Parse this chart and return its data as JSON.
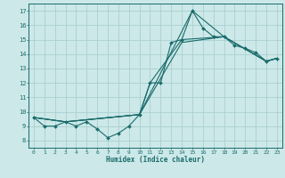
{
  "title": "",
  "xlabel": "Humidex (Indice chaleur)",
  "ylabel": "",
  "xlim": [
    -0.5,
    23.5
  ],
  "ylim": [
    7.5,
    17.5
  ],
  "xticks": [
    0,
    1,
    2,
    3,
    4,
    5,
    6,
    7,
    8,
    9,
    10,
    11,
    12,
    13,
    14,
    15,
    16,
    17,
    18,
    19,
    20,
    21,
    22,
    23
  ],
  "yticks": [
    8,
    9,
    10,
    11,
    12,
    13,
    14,
    15,
    16,
    17
  ],
  "background_color": "#cce8e8",
  "line_color": "#1a6b6b",
  "grid_color": "#aacfcf",
  "lines": [
    {
      "x": [
        0,
        1,
        2,
        3,
        4,
        5,
        6,
        7,
        8,
        9,
        10,
        11,
        12,
        13,
        14,
        15,
        16,
        17,
        18,
        19,
        20,
        21,
        22,
        23
      ],
      "y": [
        9.6,
        9.0,
        9.0,
        9.3,
        9.0,
        9.3,
        8.8,
        8.2,
        8.5,
        9.0,
        9.8,
        12.0,
        12.0,
        14.8,
        15.0,
        17.0,
        15.8,
        15.2,
        15.2,
        14.6,
        14.4,
        14.1,
        13.5,
        13.7
      ],
      "marker": true
    },
    {
      "x": [
        0,
        3,
        10,
        14,
        18,
        22,
        23
      ],
      "y": [
        9.6,
        9.3,
        9.8,
        14.8,
        15.2,
        13.5,
        13.7
      ],
      "marker": false
    },
    {
      "x": [
        0,
        3,
        10,
        15,
        18,
        22,
        23
      ],
      "y": [
        9.6,
        9.3,
        9.8,
        17.0,
        15.2,
        13.5,
        13.7
      ],
      "marker": false
    },
    {
      "x": [
        0,
        3,
        10,
        11,
        14,
        18,
        22,
        23
      ],
      "y": [
        9.6,
        9.3,
        9.8,
        12.0,
        15.0,
        15.2,
        13.5,
        13.7
      ],
      "marker": false
    }
  ]
}
